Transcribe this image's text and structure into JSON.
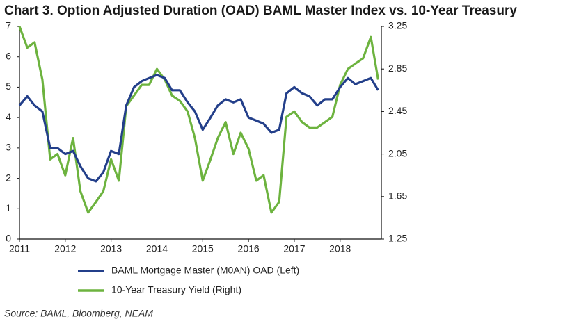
{
  "chart_data": {
    "type": "line",
    "title": "Chart 3. Option Adjusted Duration (OAD) BAML Master Index vs. 10-Year Treasury",
    "source": "Source: BAML, Bloomberg, NEAM",
    "x": [
      2011,
      2011.17,
      2011.33,
      2011.5,
      2011.67,
      2011.83,
      2012,
      2012.17,
      2012.33,
      2012.5,
      2012.67,
      2012.83,
      2013,
      2013.17,
      2013.33,
      2013.5,
      2013.67,
      2013.83,
      2014,
      2014.17,
      2014.33,
      2014.5,
      2014.67,
      2014.83,
      2015,
      2015.17,
      2015.33,
      2015.5,
      2015.67,
      2015.83,
      2016,
      2016.17,
      2016.33,
      2016.5,
      2016.67,
      2016.83,
      2017,
      2017.17,
      2017.33,
      2017.5,
      2017.67,
      2017.83,
      2018,
      2018.17,
      2018.33,
      2018.5,
      2018.67,
      2018.83
    ],
    "series": [
      {
        "name": "BAML Mortgage Master (M0AN) OAD (Left)",
        "color": "#233f8a",
        "axis": "y",
        "values": [
          4.4,
          4.7,
          4.4,
          4.2,
          3.0,
          3.0,
          2.8,
          2.9,
          2.4,
          2.0,
          1.9,
          2.2,
          2.9,
          2.8,
          4.4,
          5.0,
          5.2,
          5.3,
          5.4,
          5.3,
          4.9,
          4.9,
          4.5,
          4.2,
          3.6,
          4.0,
          4.4,
          4.6,
          4.5,
          4.6,
          4.0,
          3.9,
          3.8,
          3.5,
          3.6,
          4.8,
          5.0,
          4.8,
          4.7,
          4.4,
          4.6,
          4.6,
          5.0,
          5.3,
          5.1,
          5.2,
          5.3,
          4.9
        ]
      },
      {
        "name": "10-Year Treasury Yield (Right)",
        "color": "#6db33f",
        "axis": "y2",
        "values": [
          3.25,
          3.05,
          3.1,
          2.75,
          2.0,
          2.05,
          1.85,
          2.2,
          1.7,
          1.5,
          1.6,
          1.7,
          2.0,
          1.8,
          2.5,
          2.6,
          2.7,
          2.7,
          2.85,
          2.75,
          2.6,
          2.55,
          2.45,
          2.2,
          1.8,
          2.0,
          2.2,
          2.35,
          2.05,
          2.25,
          2.1,
          1.8,
          1.85,
          1.5,
          1.6,
          2.4,
          2.45,
          2.35,
          2.3,
          2.3,
          2.35,
          2.4,
          2.7,
          2.85,
          2.9,
          2.95,
          3.15,
          2.75
        ]
      }
    ],
    "xlim": [
      2011,
      2018.9
    ],
    "xticks": [
      2011,
      2012,
      2013,
      2014,
      2015,
      2016,
      2017,
      2018
    ],
    "ylim": [
      0,
      7
    ],
    "yticks": [
      0,
      1,
      2,
      3,
      4,
      5,
      6,
      7
    ],
    "y2lim": [
      1.25,
      3.25
    ],
    "y2ticks": [
      1.25,
      1.65,
      2.05,
      2.45,
      2.85,
      3.25
    ],
    "grid": false
  }
}
